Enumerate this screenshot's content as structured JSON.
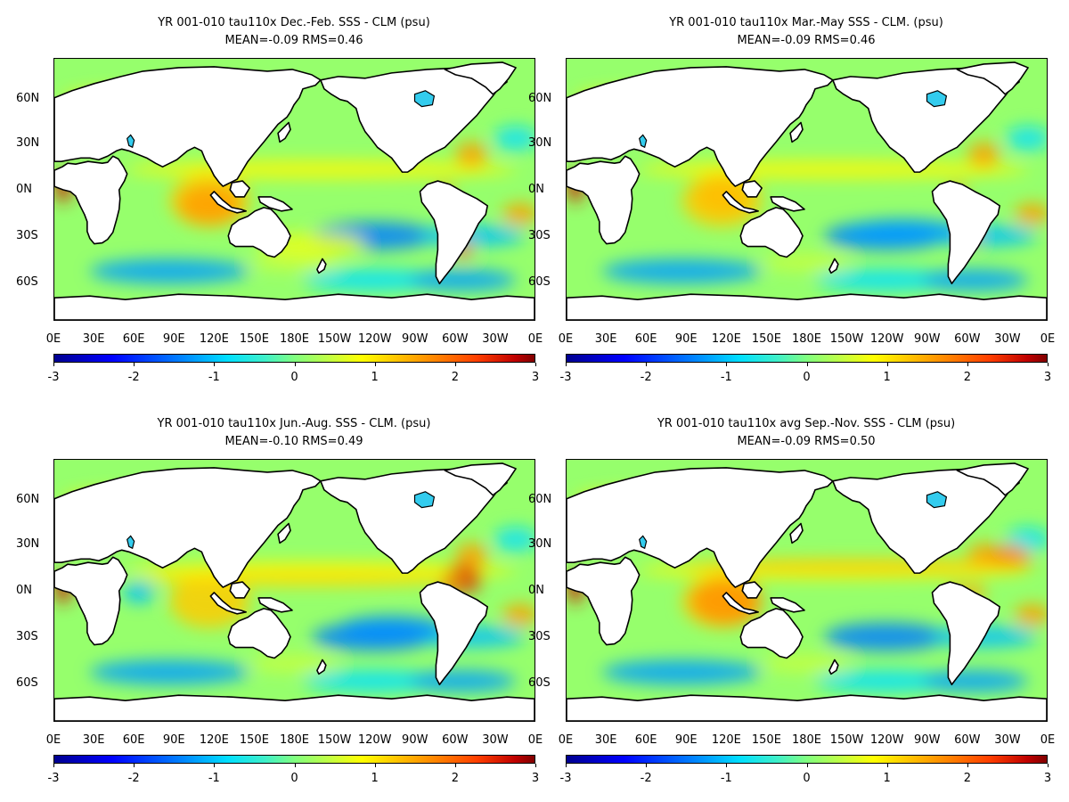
{
  "panels": [
    {
      "title": "YR 001-010 tau110x  Dec.-Feb. SSS - CLM (psu)",
      "stats": "MEAN=-0.09   RMS=0.46",
      "season": "DJF"
    },
    {
      "title": "YR 001-010 tau110x Mar.-May SSS - CLM. (psu)",
      "stats": "MEAN=-0.09   RMS=0.46",
      "season": "MAM"
    },
    {
      "title": "YR 001-010 tau110x Jun.-Aug. SSS - CLM. (psu)",
      "stats": "MEAN=-0.10   RMS=0.49",
      "season": "JJA"
    },
    {
      "title": "YR 001-010 tau110x avg Sep.-Nov. SSS - CLM (psu)",
      "stats": "MEAN=-0.09   RMS=0.50",
      "season": "SON"
    }
  ],
  "lat_labels": [
    "60N",
    "30N",
    "0N",
    "30S",
    "60S"
  ],
  "lon_labels": [
    "0E",
    "30E",
    "60E",
    "90E",
    "120E",
    "150E",
    "180E",
    "150W",
    "120W",
    "90W",
    "60W",
    "30W",
    "0E"
  ],
  "colorbar_labels": [
    "-3",
    "-2",
    "-1",
    "0",
    "1",
    "2",
    "3"
  ],
  "colorbar_range": [
    -3,
    3
  ],
  "colorscale": [
    "#00008f",
    "#0000ff",
    "#007fff",
    "#00dfff",
    "#80ff80",
    "#ffff00",
    "#ff9f00",
    "#ff3f00",
    "#800000"
  ]
}
